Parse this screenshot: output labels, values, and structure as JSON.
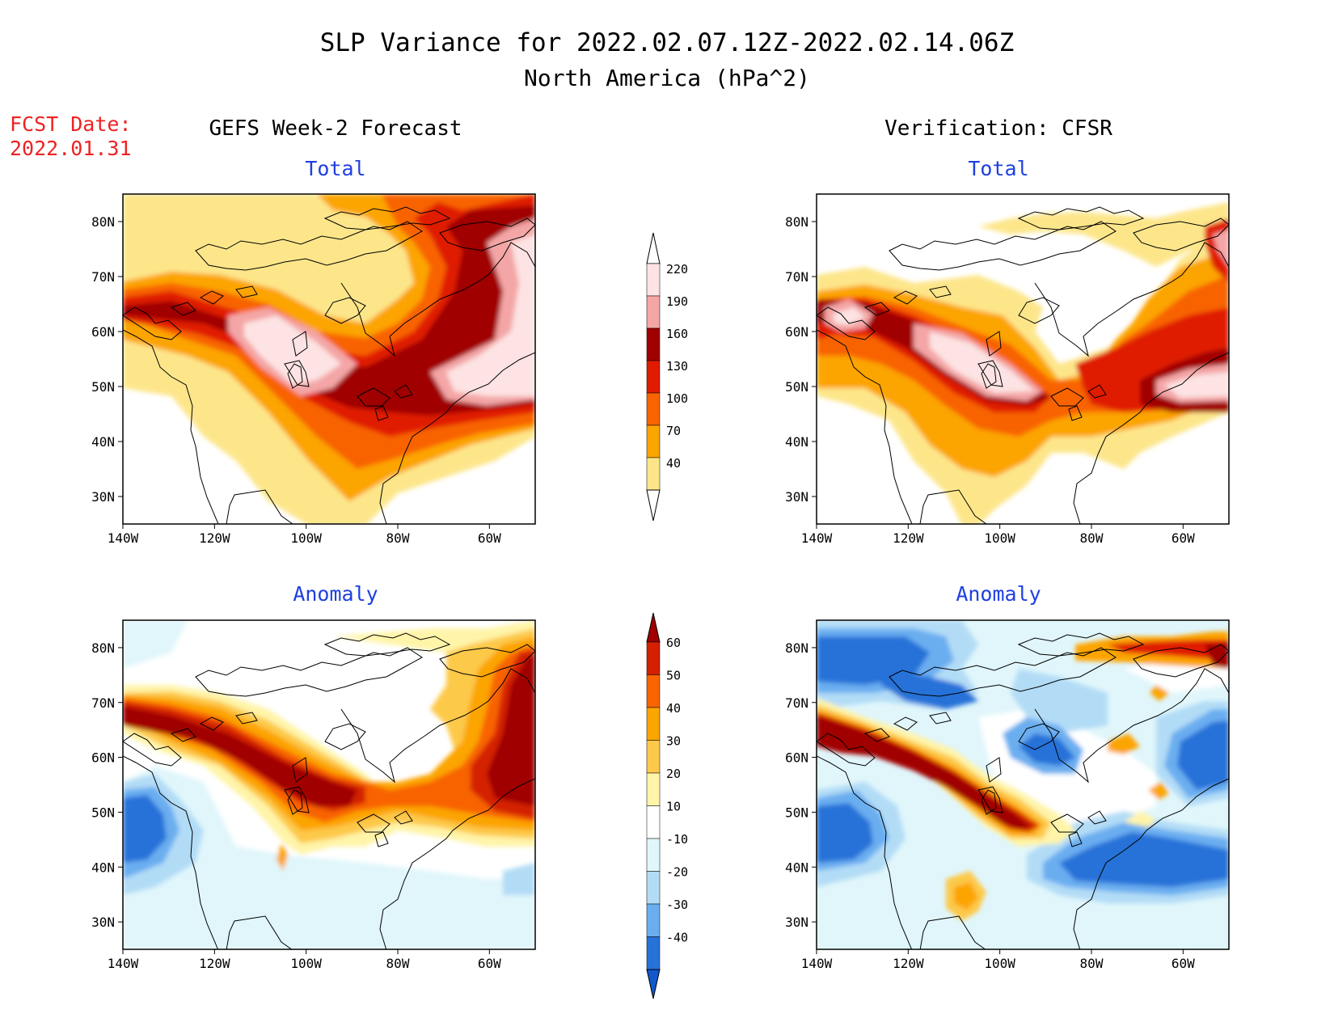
{
  "header": {
    "title": "SLP Variance for 2022.02.07.12Z-2022.02.14.06Z",
    "subtitle": "North America (hPa^2)"
  },
  "forecast_date": {
    "label": "FCST Date:",
    "value": "2022.01.31"
  },
  "columns": {
    "left": "GEFS Week-2 Forecast",
    "right": "Verification: CFSR"
  },
  "panel_titles": {
    "top": "Total",
    "bottom": "Anomaly"
  },
  "axes": {
    "lat_labels": [
      "80N",
      "70N",
      "60N",
      "50N",
      "40N",
      "30N"
    ],
    "lon_labels": [
      "140W",
      "120W",
      "100W",
      "80W",
      "60W"
    ]
  },
  "legends": {
    "total": {
      "labels": [
        "220",
        "190",
        "160",
        "130",
        "100",
        "70",
        "40"
      ],
      "colors": [
        "#fde3e3",
        "#f4a6a6",
        "#a00000",
        "#e01b00",
        "#f86400",
        "#fca400",
        "#fde68a"
      ]
    },
    "anomaly": {
      "labels": [
        "60",
        "50",
        "40",
        "30",
        "20",
        "10",
        "-10",
        "-20",
        "-30",
        "-40"
      ],
      "colors": [
        "#a00000",
        "#d42000",
        "#f86400",
        "#fca400",
        "#fdc94a",
        "#fff4a8",
        "#ffffff",
        "#e0f6fb",
        "#b2dcf6",
        "#6aaef0",
        "#2672d8",
        "#1258cc"
      ]
    }
  },
  "map_colors": {
    "coast": "#000000",
    "frame": "#000000",
    "title_blue": "#1e40e0",
    "fcst_red": "#ee2222"
  }
}
